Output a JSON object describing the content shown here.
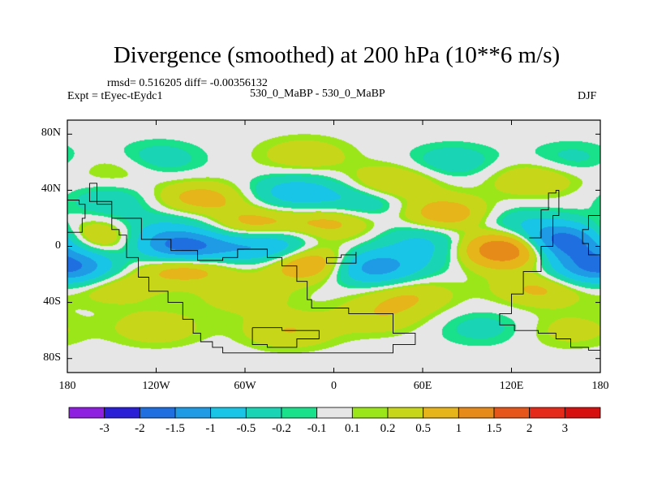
{
  "chart_data": {
    "type": "heatmap",
    "title": "Divergence (smoothed) at 200 hPa (10**6 m/s)",
    "stats_line": "rmsd= 0.516205 diff= -0.00356132",
    "left_label": "Expt = tEyec-tEydc1",
    "center_label": "530_0_MaBP - 530_0_MaBP",
    "right_label": "DJF",
    "x_ticks": [
      "180",
      "120W",
      "60W",
      "0",
      "60E",
      "120E",
      "180"
    ],
    "x_tick_values": [
      -180,
      -120,
      -60,
      0,
      60,
      120,
      180
    ],
    "y_ticks": [
      "80N",
      "40N",
      "0",
      "40S",
      "80S"
    ],
    "y_tick_values": [
      80,
      40,
      0,
      -40,
      -80
    ],
    "xlim": [
      -180,
      180
    ],
    "ylim": [
      -90,
      90
    ],
    "colorbar": {
      "labels": [
        "-3",
        "-2",
        "-1.5",
        "-1",
        "-0.5",
        "-0.2",
        "-0.1",
        "0.1",
        "0.2",
        "0.5",
        "1",
        "1.5",
        "2",
        "3"
      ],
      "colors": [
        "#8f1fe0",
        "#2a1fd6",
        "#1f6fe0",
        "#1f9be6",
        "#19c5e6",
        "#19d5b5",
        "#19e08a",
        "#e6e6e6",
        "#9be619",
        "#c8d619",
        "#e6b519",
        "#e68a19",
        "#e65519",
        "#e62a19",
        "#d60f0f"
      ]
    },
    "features": [
      {
        "lon": -100,
        "lat": -2,
        "value": -2.2
      },
      {
        "lon": -45,
        "lat": 0,
        "value": -1.2
      },
      {
        "lon": 150,
        "lat": 3,
        "value": -2.5
      },
      {
        "lon": 25,
        "lat": -15,
        "value": -1.4
      },
      {
        "lon": -150,
        "lat": 32,
        "value": -0.4
      },
      {
        "lon": -25,
        "lat": 38,
        "value": -0.8
      },
      {
        "lon": 20,
        "lat": 30,
        "value": -0.6
      },
      {
        "lon": 120,
        "lat": 15,
        "value": -0.5
      },
      {
        "lon": -175,
        "lat": -15,
        "value": -0.9
      },
      {
        "lon": 175,
        "lat": -15,
        "value": -0.9
      },
      {
        "lon": 75,
        "lat": -5,
        "value": -0.5
      },
      {
        "lon": -90,
        "lat": 25,
        "value": -0.5
      },
      {
        "lon": 125,
        "lat": 0,
        "value": 2.0
      },
      {
        "lon": -55,
        "lat": 15,
        "value": 0.8
      },
      {
        "lon": -90,
        "lat": 32,
        "value": 1.0
      },
      {
        "lon": -100,
        "lat": -12,
        "value": 1.3
      },
      {
        "lon": -15,
        "lat": -12,
        "value": 1.2
      },
      {
        "lon": 75,
        "lat": 22,
        "value": 0.9
      },
      {
        "lon": 0,
        "lat": 18,
        "value": 0.7
      },
      {
        "lon": -155,
        "lat": 7,
        "value": 0.9
      },
      {
        "lon": 100,
        "lat": -5,
        "value": 0.6
      },
      {
        "lon": 40,
        "lat": 45,
        "value": 0.6
      },
      {
        "lon": 135,
        "lat": 48,
        "value": 0.5
      },
      {
        "lon": -150,
        "lat": -28,
        "value": 0.5
      },
      {
        "lon": -60,
        "lat": -35,
        "value": 0.4
      },
      {
        "lon": 50,
        "lat": -35,
        "value": 0.5
      },
      {
        "lon": 140,
        "lat": -30,
        "value": 0.6
      },
      {
        "lon": 30,
        "lat": -50,
        "value": 0.4
      },
      {
        "lon": -120,
        "lat": 62,
        "value": -0.4
      },
      {
        "lon": -20,
        "lat": 65,
        "value": 0.4
      },
      {
        "lon": 80,
        "lat": 60,
        "value": -0.4
      },
      {
        "lon": -145,
        "lat": 55,
        "value": 0.3
      },
      {
        "lon": 160,
        "lat": 62,
        "value": -0.3
      },
      {
        "lon": -120,
        "lat": -58,
        "value": 0.4
      },
      {
        "lon": -30,
        "lat": -60,
        "value": 0.5
      },
      {
        "lon": 100,
        "lat": -58,
        "value": -0.3
      },
      {
        "lon": 160,
        "lat": -60,
        "value": 0.3
      },
      {
        "lon": 60,
        "lat": 8,
        "value": -0.5
      },
      {
        "lon": -130,
        "lat": 10,
        "value": -0.6
      }
    ]
  }
}
